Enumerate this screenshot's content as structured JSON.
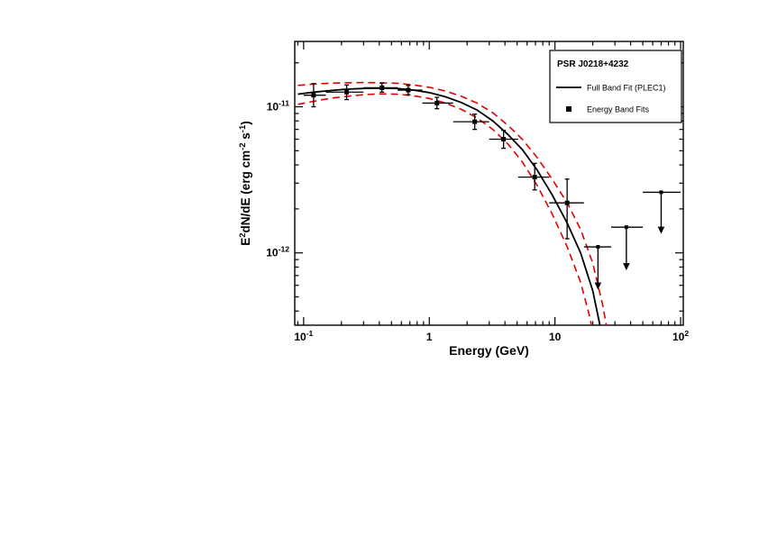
{
  "chart_data": {
    "type": "scatter",
    "title": "",
    "xlabel": "Energy (GeV)",
    "ylabel": "E^2 dN/dE (erg cm^-2 s^-1)",
    "xscale": "log",
    "yscale": "log",
    "grid": false,
    "x_axis": {
      "label": "Energy (GeV)",
      "min": 0.085,
      "max": 105,
      "major_ticks": [
        {
          "v": 0.1,
          "base": "10",
          "exp": "-1"
        },
        {
          "v": 1,
          "base": "1",
          "exp": ""
        },
        {
          "v": 10,
          "base": "10",
          "exp": ""
        },
        {
          "v": 100,
          "base": "10",
          "exp": "2"
        }
      ]
    },
    "y_axis": {
      "label": "E^2 dN/dE (erg cm^-2 s^-1)",
      "label_segments": [
        {
          "t": "E"
        },
        {
          "t": "2",
          "sup": true
        },
        {
          "t": "dN/dE (erg cm"
        },
        {
          "t": "-2",
          "sup": true
        },
        {
          "t": " s"
        },
        {
          "t": "-1",
          "sup": true
        },
        {
          "t": ")"
        }
      ],
      "min": 3.2e-13,
      "max": 2.8e-11,
      "major_ticks": [
        {
          "v": 1e-11,
          "base": "10",
          "exp": "-11"
        },
        {
          "v": 1e-12,
          "base": "10",
          "exp": "-12"
        }
      ]
    },
    "legend": {
      "position": "top-right",
      "title": "PSR J0218+4232",
      "entries": [
        {
          "label": "Full Band Fit (PLEC1)",
          "marker": "line",
          "color": "#000000"
        },
        {
          "label": "Energy Band Fits",
          "marker": "square",
          "color": "#000000"
        }
      ]
    },
    "style": {
      "axis_color": "#000000",
      "band_color": "#e50000",
      "fit_color": "#000000",
      "marker": "filled-square"
    },
    "series": [
      {
        "name": "confidence-band-upper",
        "color": "#e50000",
        "width": 1.6,
        "dash": "8 5",
        "points": [
          [
            0.09,
            1.4e-11
          ],
          [
            0.12,
            1.43e-11
          ],
          [
            0.16,
            1.45e-11
          ],
          [
            0.22,
            1.46e-11
          ],
          [
            0.3,
            1.465e-11
          ],
          [
            0.4,
            1.46e-11
          ],
          [
            0.55,
            1.45e-11
          ],
          [
            0.75,
            1.41e-11
          ],
          [
            1.0,
            1.36e-11
          ],
          [
            1.35,
            1.28e-11
          ],
          [
            1.8,
            1.18e-11
          ],
          [
            2.4,
            1.06e-11
          ],
          [
            3.2,
            9.1e-12
          ],
          [
            4.2,
            7.5e-12
          ],
          [
            5.5,
            6e-12
          ],
          [
            7.2,
            4.5e-12
          ],
          [
            9.5,
            3.2e-12
          ],
          [
            12.5,
            2.2e-12
          ],
          [
            16,
            1.45e-12
          ],
          [
            20,
            8.5e-13
          ],
          [
            24,
            4.4e-13
          ],
          [
            28,
            2.1e-13
          ],
          [
            32,
            9e-14
          ]
        ]
      },
      {
        "name": "confidence-band-lower",
        "color": "#e50000",
        "width": 1.6,
        "dash": "8 5",
        "points": [
          [
            0.09,
            1.04e-11
          ],
          [
            0.12,
            1.09e-11
          ],
          [
            0.16,
            1.14e-11
          ],
          [
            0.22,
            1.18e-11
          ],
          [
            0.3,
            1.21e-11
          ],
          [
            0.4,
            1.225e-11
          ],
          [
            0.55,
            1.22e-11
          ],
          [
            0.75,
            1.19e-11
          ],
          [
            1.0,
            1.14e-11
          ],
          [
            1.35,
            1.06e-11
          ],
          [
            1.8,
            9.6e-12
          ],
          [
            2.4,
            8.4e-12
          ],
          [
            3.2,
            7e-12
          ],
          [
            4.2,
            5.6e-12
          ],
          [
            5.5,
            4.2e-12
          ],
          [
            7.2,
            2.9e-12
          ],
          [
            9.5,
            1.85e-12
          ],
          [
            12.5,
            1.1e-12
          ],
          [
            16,
            6.3e-13
          ],
          [
            19,
            3.6e-13
          ],
          [
            22,
            1.9e-13
          ],
          [
            25,
            9e-14
          ]
        ]
      },
      {
        "name": "best-fit-model",
        "color": "#000000",
        "width": 1.8,
        "dash": "",
        "points": [
          [
            0.09,
            1.22e-11
          ],
          [
            0.12,
            1.26e-11
          ],
          [
            0.16,
            1.29e-11
          ],
          [
            0.22,
            1.32e-11
          ],
          [
            0.3,
            1.335e-11
          ],
          [
            0.4,
            1.34e-11
          ],
          [
            0.55,
            1.335e-11
          ],
          [
            0.75,
            1.3e-11
          ],
          [
            1.0,
            1.25e-11
          ],
          [
            1.35,
            1.17e-11
          ],
          [
            1.8,
            1.07e-11
          ],
          [
            2.4,
            9.5e-12
          ],
          [
            3.2,
            8e-12
          ],
          [
            4.2,
            6.5e-12
          ],
          [
            5.5,
            5.1e-12
          ],
          [
            7.2,
            3.7e-12
          ],
          [
            9.5,
            2.5e-12
          ],
          [
            12.5,
            1.6e-12
          ],
          [
            16,
            1e-12
          ],
          [
            20,
            5.5e-13
          ],
          [
            24,
            2.6e-13
          ],
          [
            28,
            1.1e-13
          ]
        ]
      }
    ],
    "points": [
      {
        "x": 0.12,
        "x_lo": 0.1,
        "x_hi": 0.15,
        "y": 1.2e-11,
        "y_lo": 1e-11,
        "y_hi": 1.44e-11
      },
      {
        "x": 0.22,
        "x_lo": 0.15,
        "x_hi": 0.3,
        "y": 1.26e-11,
        "y_lo": 1.12e-11,
        "y_hi": 1.41e-11
      },
      {
        "x": 0.42,
        "x_lo": 0.3,
        "x_hi": 0.56,
        "y": 1.35e-11,
        "y_lo": 1.26e-11,
        "y_hi": 1.45e-11
      },
      {
        "x": 0.68,
        "x_lo": 0.56,
        "x_hi": 0.88,
        "y": 1.3e-11,
        "y_lo": 1.21e-11,
        "y_hi": 1.4e-11
      },
      {
        "x": 1.15,
        "x_lo": 0.88,
        "x_hi": 1.55,
        "y": 1.06e-11,
        "y_lo": 9.7e-12,
        "y_hi": 1.16e-11
      },
      {
        "x": 2.3,
        "x_lo": 1.55,
        "x_hi": 3.0,
        "y": 7.9e-12,
        "y_lo": 7e-12,
        "y_hi": 8.9e-12
      },
      {
        "x": 3.9,
        "x_lo": 3.0,
        "x_hi": 5.1,
        "y": 6e-12,
        "y_lo": 5.2e-12,
        "y_hi": 6.9e-12
      },
      {
        "x": 6.9,
        "x_lo": 5.1,
        "x_hi": 9.0,
        "y": 3.3e-12,
        "y_lo": 2.7e-12,
        "y_hi": 4.1e-12
      },
      {
        "x": 12.5,
        "x_lo": 9.0,
        "x_hi": 17.0,
        "y": 2.2e-12,
        "y_lo": 1.25e-12,
        "y_hi": 3.2e-12
      }
    ],
    "upper_limits": [
      {
        "x": 22,
        "x_lo": 17,
        "x_hi": 28,
        "y": 1.1e-12,
        "y_arrow_end": 5.6e-13
      },
      {
        "x": 37,
        "x_lo": 28,
        "x_hi": 50,
        "y": 1.5e-12,
        "y_arrow_end": 7.6e-13
      },
      {
        "x": 70,
        "x_lo": 50,
        "x_hi": 100,
        "y": 2.6e-12,
        "y_arrow_end": 1.35e-12
      }
    ]
  }
}
